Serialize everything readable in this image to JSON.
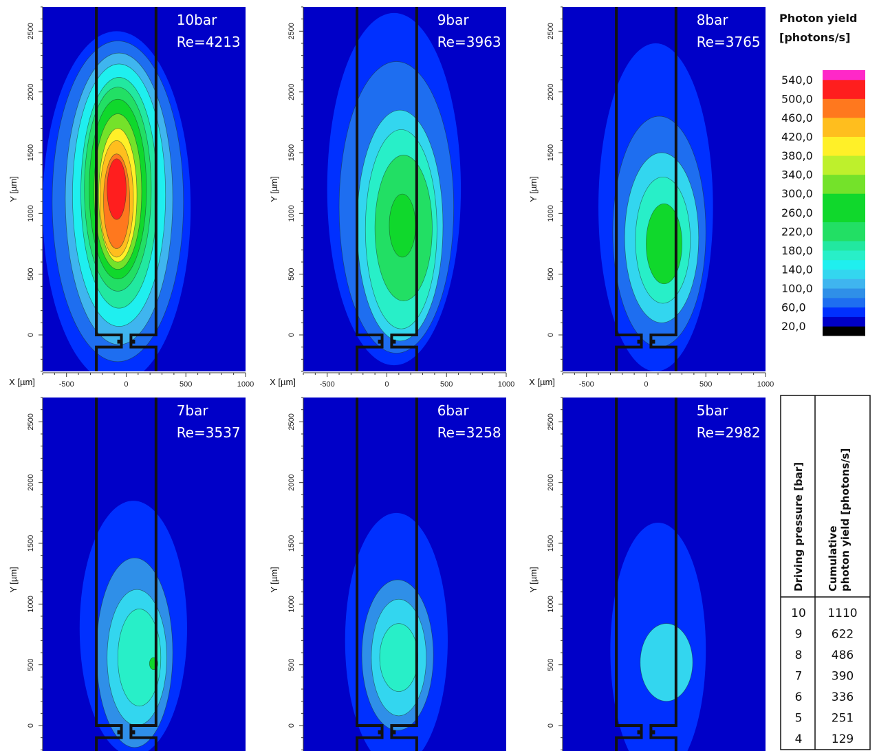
{
  "chart_data": {
    "type": "heatmap",
    "colorbar": {
      "title_line1": "Photon yield",
      "title_line2": "[photons/s]",
      "range": [
        0,
        560
      ],
      "tick_labels": [
        "540,0",
        "500,0",
        "460,0",
        "420,0",
        "380,0",
        "340,0",
        "300,0",
        "260,0",
        "220,0",
        "180,0",
        "140,0",
        "100,0",
        "60,0",
        "20,0"
      ],
      "tick_values": [
        540,
        500,
        460,
        420,
        380,
        340,
        300,
        260,
        220,
        180,
        140,
        100,
        60,
        20
      ],
      "colors": [
        {
          "from": 0,
          "to": 20,
          "color": "#000000"
        },
        {
          "from": 20,
          "to": 40,
          "color": "#0000c8"
        },
        {
          "from": 40,
          "to": 60,
          "color": "#0030ff"
        },
        {
          "from": 60,
          "to": 80,
          "color": "#1e6ef0"
        },
        {
          "from": 80,
          "to": 100,
          "color": "#2f8fe8"
        },
        {
          "from": 100,
          "to": 120,
          "color": "#3fb5ef"
        },
        {
          "from": 120,
          "to": 140,
          "color": "#33d6ef"
        },
        {
          "from": 140,
          "to": 160,
          "color": "#1fefef"
        },
        {
          "from": 160,
          "to": 180,
          "color": "#28efc8"
        },
        {
          "from": 180,
          "to": 200,
          "color": "#22e8a0"
        },
        {
          "from": 200,
          "to": 240,
          "color": "#22df64"
        },
        {
          "from": 240,
          "to": 300,
          "color": "#10d82c"
        },
        {
          "from": 300,
          "to": 340,
          "color": "#74e22a"
        },
        {
          "from": 340,
          "to": 380,
          "color": "#bef02c"
        },
        {
          "from": 380,
          "to": 420,
          "color": "#fff028"
        },
        {
          "from": 420,
          "to": 460,
          "color": "#ffbe1e"
        },
        {
          "from": 460,
          "to": 500,
          "color": "#ff781e"
        },
        {
          "from": 500,
          "to": 540,
          "color": "#ff1e1e"
        },
        {
          "from": 540,
          "to": 560,
          "color": "#ff28c8"
        }
      ]
    },
    "axes": {
      "xlabel": "X [µm]",
      "ylabel": "Y [µm]",
      "xlim": [
        -700,
        1000
      ],
      "ylim": [
        -300,
        2700
      ],
      "x_ticks": [
        "-500",
        "0",
        "500",
        "1000"
      ],
      "x_tick_values": [
        -500,
        0,
        500,
        1000
      ],
      "y_ticks": [
        "0",
        "500",
        "1000",
        "1500",
        "2000",
        "2500"
      ],
      "y_tick_values": [
        0,
        500,
        1000,
        1500,
        2000,
        2500
      ]
    },
    "panels": [
      {
        "pressure_label": "10bar",
        "re_label": "Re=4213",
        "levels": [
          {
            "v": 40,
            "cx": -80,
            "cy": 1050,
            "rx": 620,
            "ry": 1450
          },
          {
            "v": 70,
            "cx": -70,
            "cy": 1100,
            "rx": 550,
            "ry": 1320
          },
          {
            "v": 100,
            "cx": -60,
            "cy": 1120,
            "rx": 450,
            "ry": 1200
          },
          {
            "v": 140,
            "cx": -60,
            "cy": 1150,
            "rx": 390,
            "ry": 1080
          },
          {
            "v": 180,
            "cx": -60,
            "cy": 1170,
            "rx": 320,
            "ry": 950
          },
          {
            "v": 220,
            "cx": -70,
            "cy": 1200,
            "rx": 280,
            "ry": 840
          },
          {
            "v": 260,
            "cx": -70,
            "cy": 1200,
            "rx": 240,
            "ry": 740
          },
          {
            "v": 320,
            "cx": -70,
            "cy": 1180,
            "rx": 200,
            "ry": 640
          },
          {
            "v": 380,
            "cx": -70,
            "cy": 1150,
            "rx": 160,
            "ry": 550
          },
          {
            "v": 420,
            "cx": -80,
            "cy": 1120,
            "rx": 140,
            "ry": 480
          },
          {
            "v": 460,
            "cx": -80,
            "cy": 1100,
            "rx": 110,
            "ry": 390
          },
          {
            "v": 500,
            "cx": -80,
            "cy": 1200,
            "rx": 80,
            "ry": 250
          }
        ]
      },
      {
        "pressure_label": "9bar",
        "re_label": "Re=3963",
        "levels": [
          {
            "v": 40,
            "cx": 60,
            "cy": 1200,
            "rx": 560,
            "ry": 1450
          },
          {
            "v": 70,
            "cx": 80,
            "cy": 1050,
            "rx": 480,
            "ry": 1200
          },
          {
            "v": 120,
            "cx": 110,
            "cy": 900,
            "rx": 360,
            "ry": 950
          },
          {
            "v": 160,
            "cx": 120,
            "cy": 870,
            "rx": 300,
            "ry": 820
          },
          {
            "v": 200,
            "cx": 140,
            "cy": 880,
            "rx": 240,
            "ry": 600
          },
          {
            "v": 280,
            "cx": 130,
            "cy": 900,
            "rx": 110,
            "ry": 260
          }
        ]
      },
      {
        "pressure_label": "8bar",
        "re_label": "Re=3765",
        "levels": [
          {
            "v": 40,
            "cx": 80,
            "cy": 1050,
            "rx": 480,
            "ry": 1350
          },
          {
            "v": 70,
            "cx": 110,
            "cy": 850,
            "rx": 390,
            "ry": 950
          },
          {
            "v": 120,
            "cx": 130,
            "cy": 800,
            "rx": 310,
            "ry": 700
          },
          {
            "v": 160,
            "cx": 140,
            "cy": 780,
            "rx": 230,
            "ry": 520
          },
          {
            "v": 240,
            "cx": 150,
            "cy": 750,
            "rx": 150,
            "ry": 330
          }
        ]
      },
      {
        "pressure_label": "7bar",
        "re_label": "Re=3537",
        "levels": [
          {
            "v": 40,
            "cx": 60,
            "cy": 800,
            "rx": 450,
            "ry": 1050
          },
          {
            "v": 80,
            "cx": 70,
            "cy": 600,
            "rx": 320,
            "ry": 780
          },
          {
            "v": 120,
            "cx": 90,
            "cy": 560,
            "rx": 250,
            "ry": 560
          },
          {
            "v": 170,
            "cx": 110,
            "cy": 560,
            "rx": 180,
            "ry": 400
          },
          {
            "v": 250,
            "cx": 230,
            "cy": 510,
            "rx": 35,
            "ry": 50
          }
        ]
      },
      {
        "pressure_label": "6bar",
        "re_label": "Re=3258",
        "levels": [
          {
            "v": 40,
            "cx": 80,
            "cy": 700,
            "rx": 430,
            "ry": 1050
          },
          {
            "v": 80,
            "cx": 90,
            "cy": 580,
            "rx": 300,
            "ry": 620
          },
          {
            "v": 120,
            "cx": 100,
            "cy": 560,
            "rx": 230,
            "ry": 480
          },
          {
            "v": 170,
            "cx": 100,
            "cy": 560,
            "rx": 160,
            "ry": 280
          }
        ]
      },
      {
        "pressure_label": "5bar",
        "re_label": "Re=2982",
        "levels": [
          {
            "v": 40,
            "cx": 100,
            "cy": 620,
            "rx": 400,
            "ry": 1050
          },
          {
            "v": 120,
            "cx": 170,
            "cy": 520,
            "rx": 220,
            "ry": 320
          }
        ]
      }
    ],
    "table": {
      "col1_header": "Driving pressure [bar]",
      "col2_header_line1": "Cumulative",
      "col2_header_line2": "photon yield [photons/s]",
      "rows": [
        {
          "pressure": "10",
          "yield": "1110"
        },
        {
          "pressure": "9",
          "yield": "622"
        },
        {
          "pressure": "8",
          "yield": "486"
        },
        {
          "pressure": "7",
          "yield": "390"
        },
        {
          "pressure": "6",
          "yield": "336"
        },
        {
          "pressure": "5",
          "yield": "251"
        },
        {
          "pressure": "4",
          "yield": "129"
        }
      ]
    }
  }
}
